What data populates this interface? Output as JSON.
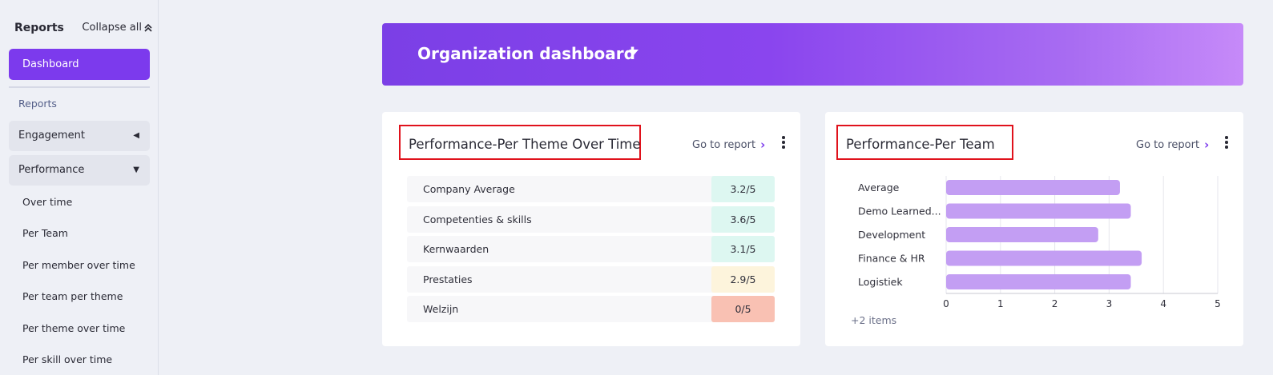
{
  "sidebar": {
    "title": "Reports",
    "collapse_label": "Collapse all",
    "dashboard_label": "Dashboard",
    "section_label": "Reports",
    "groups": [
      {
        "label": "Engagement",
        "expanded": false
      },
      {
        "label": "Performance",
        "expanded": true
      }
    ],
    "sub_items": [
      "Over time",
      "Per Team",
      "Per member over time",
      "Per team per theme",
      "Per theme over time",
      "Per skill over time"
    ]
  },
  "banner": {
    "title": "Organization dashboard"
  },
  "theme_card": {
    "title": "Performance-Per Theme Over Time",
    "goto_label": "Go to report",
    "rows": [
      {
        "label": "Company Average",
        "score": "3.2/5",
        "color": "#ddf7f1"
      },
      {
        "label": "Competenties & skills",
        "score": "3.6/5",
        "color": "#ddf7f1"
      },
      {
        "label": "Kernwaarden",
        "score": "3.1/5",
        "color": "#ddf7f1"
      },
      {
        "label": "Prestaties",
        "score": "2.9/5",
        "color": "#fdf4dc"
      },
      {
        "label": "Welzijn",
        "score": "0/5",
        "color": "#f9c1b3"
      }
    ]
  },
  "team_card": {
    "title": "Performance-Per Team",
    "goto_label": "Go to report",
    "more_items": "+2 items"
  },
  "chart_data": {
    "type": "bar",
    "orientation": "horizontal",
    "categories": [
      "Average",
      "Demo Learned...",
      "Development",
      "Finance & HR",
      "Logistiek"
    ],
    "values": [
      3.2,
      3.4,
      2.8,
      3.6,
      3.4
    ],
    "xlim": [
      0,
      5
    ],
    "xticks": [
      "0",
      "1",
      "2",
      "3",
      "4",
      "5"
    ],
    "grid": true,
    "bar_color": "#c39ef3"
  }
}
